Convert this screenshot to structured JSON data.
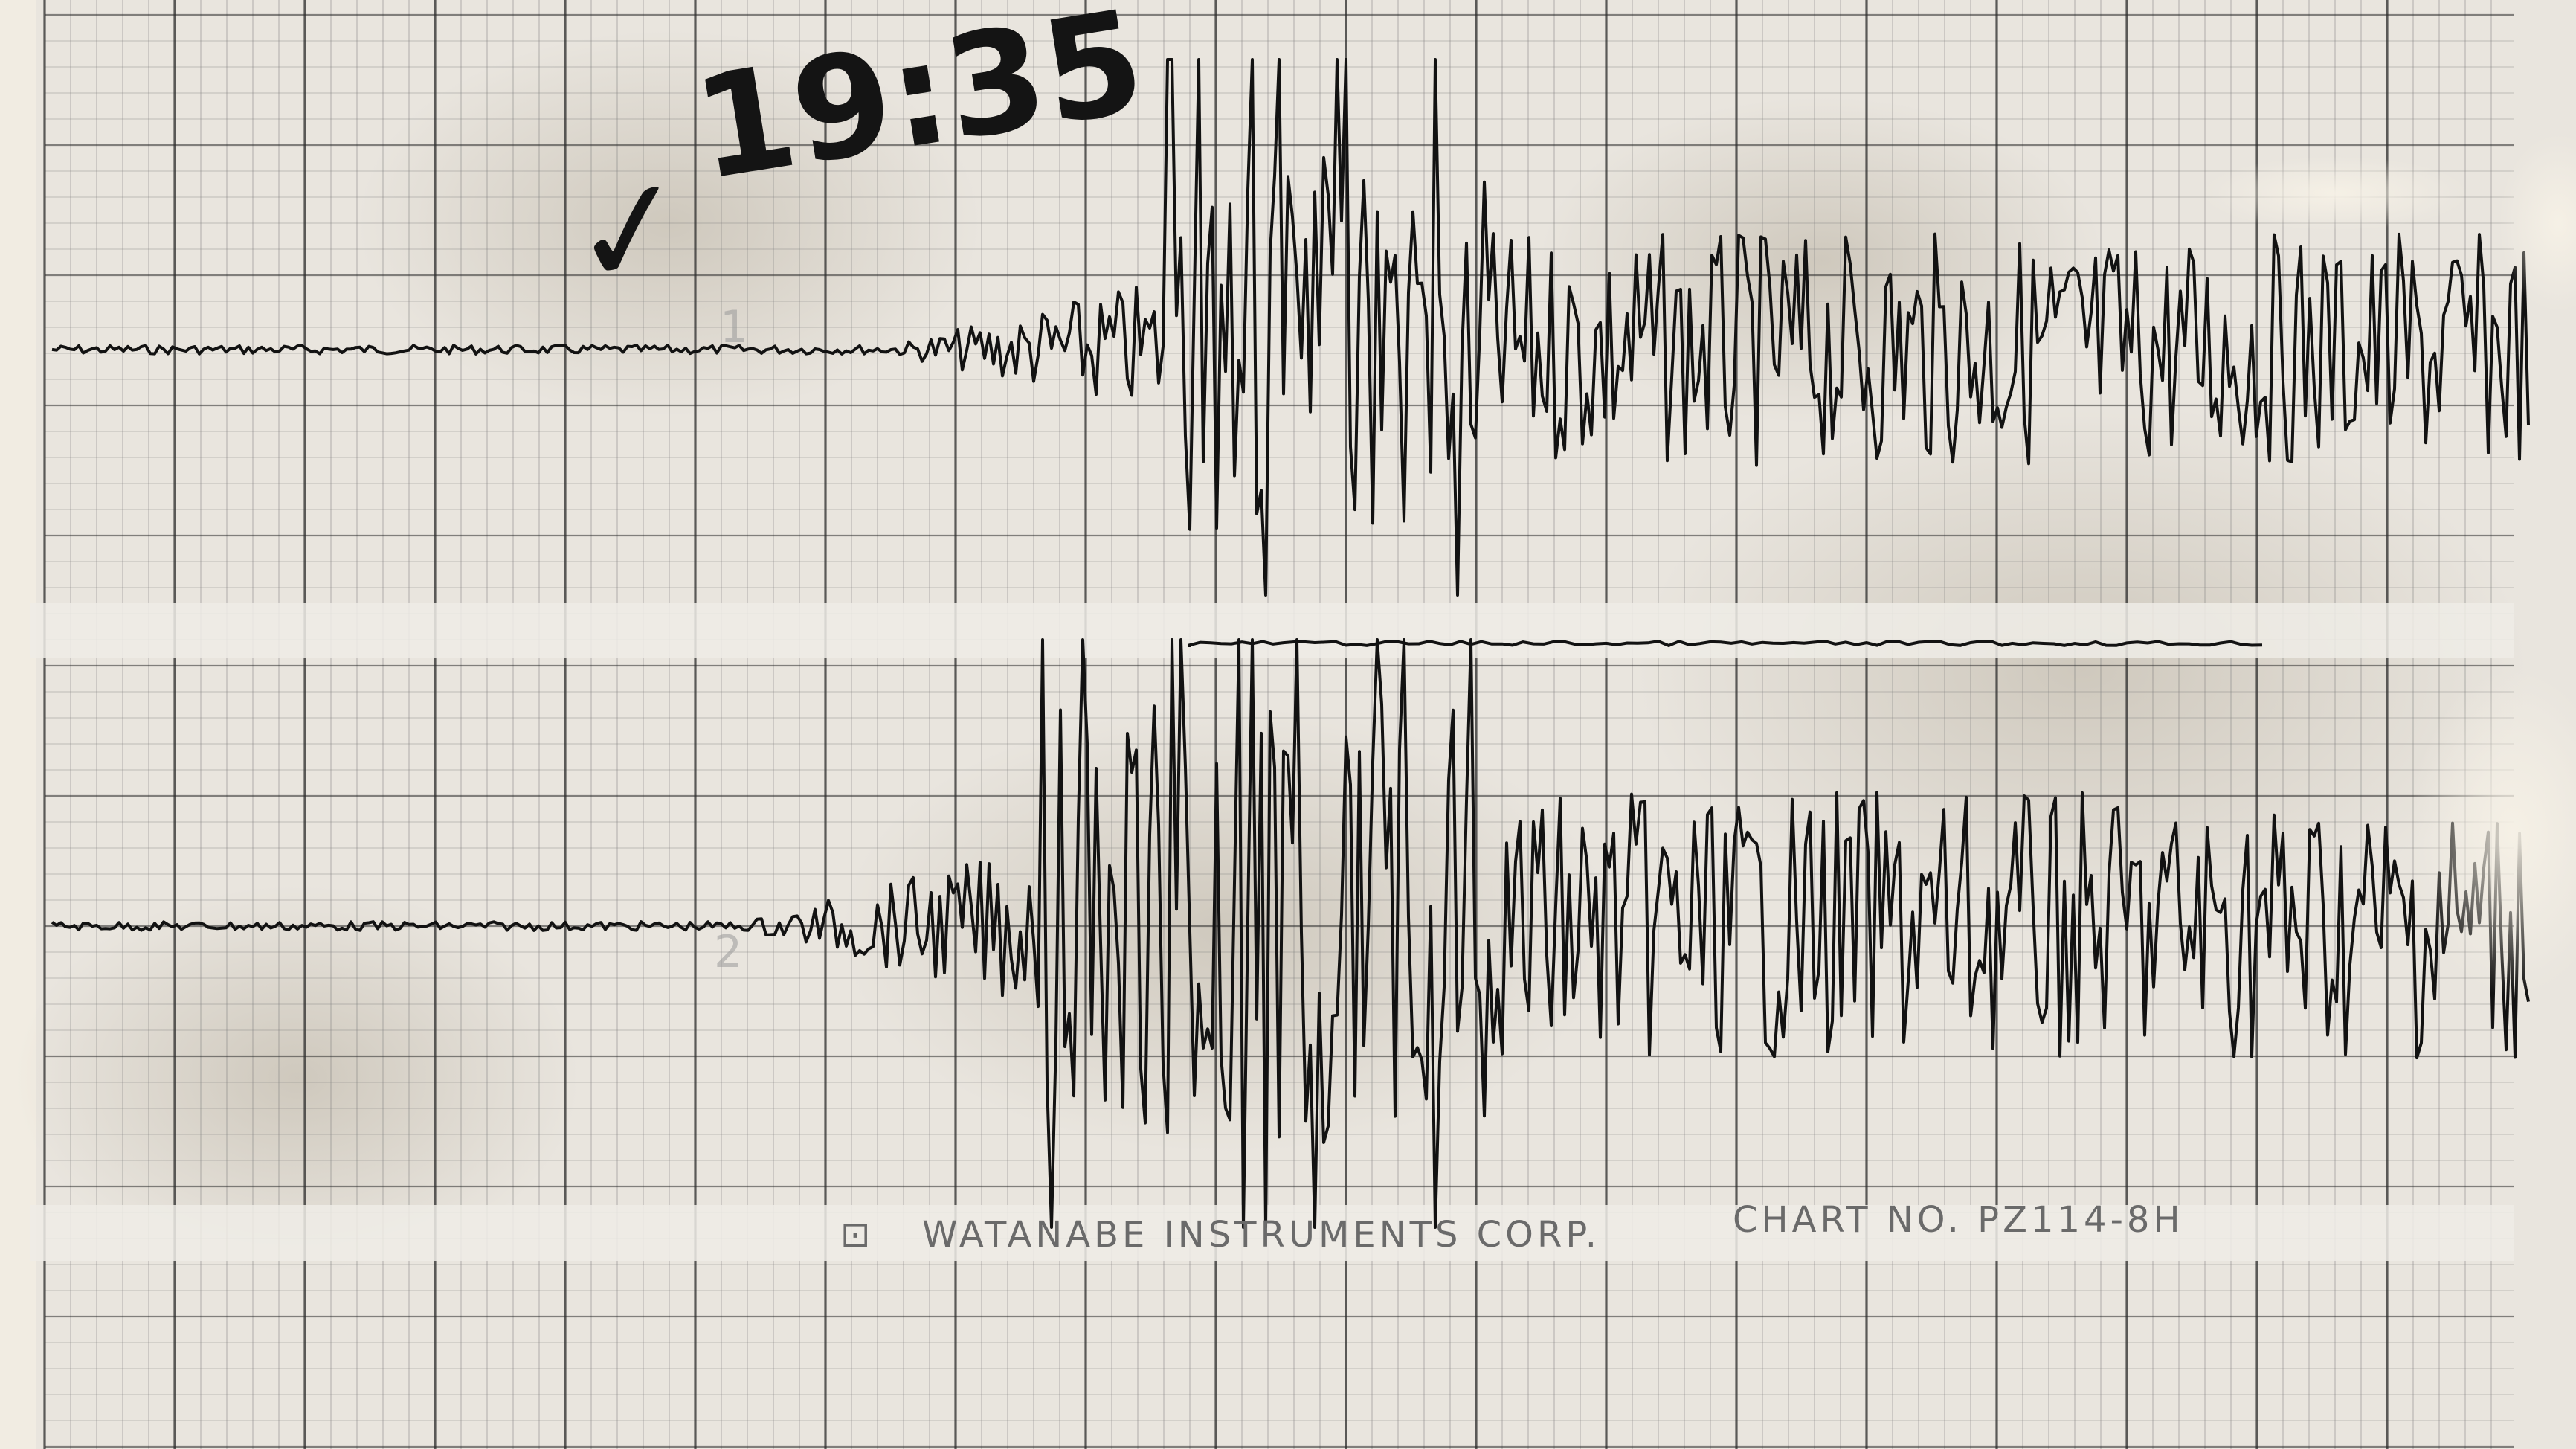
{
  "annotation": {
    "time_text": "19:35",
    "check_mark": "✓"
  },
  "footer": {
    "logo_glyph": "⊡",
    "maker": "WATANABE INSTRUMENTS CORP.",
    "chart_no": "CHART NO. PZ114-8H"
  },
  "channel_marks": {
    "channel_1": "1",
    "channel_2": "2"
  },
  "colors": {
    "paper": "#e9e5de",
    "paper_edge": "#f1ece2",
    "grid_major": "#2b2b2b",
    "grid_minor": "#7d7d7d",
    "band": "#efece6",
    "ink": "#121212",
    "stain": "#c9c2b4"
  }
}
